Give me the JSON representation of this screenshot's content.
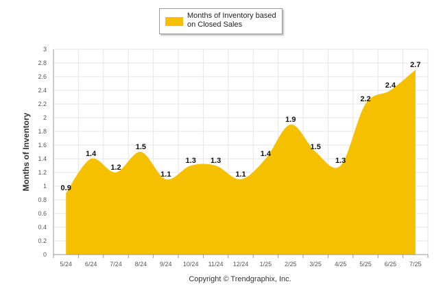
{
  "legend": {
    "label": "Months of Inventory based on Closed Sales"
  },
  "footer": {
    "text": "Copyright © Trendgraphix, Inc."
  },
  "colors": {
    "area": "#f5c000",
    "grid": "#e6e6e6",
    "axis": "#999999"
  },
  "chart_data": {
    "type": "area",
    "title": "",
    "xlabel": "",
    "ylabel": "Months of Inventory",
    "categories": [
      "5/24",
      "6/24",
      "7/24",
      "8/24",
      "9/24",
      "10/24",
      "11/24",
      "12/24",
      "1/25",
      "2/25",
      "3/25",
      "4/25",
      "5/25",
      "6/25",
      "7/25"
    ],
    "series": [
      {
        "name": "Months of Inventory based on Closed Sales",
        "values": [
          0.9,
          1.4,
          1.2,
          1.5,
          1.1,
          1.3,
          1.3,
          1.1,
          1.4,
          1.9,
          1.5,
          1.3,
          2.2,
          2.4,
          2.7
        ]
      }
    ],
    "data_labels": [
      "0.9",
      "1.4",
      "1.2",
      "1.5",
      "1.1",
      "1.3",
      "1.3",
      "1.1",
      "1.4",
      "1.9",
      "1.5",
      "1.3",
      "2.2",
      "2.4",
      "2.7"
    ],
    "ylim": [
      0,
      3
    ],
    "yticks": [
      "0",
      "0.2",
      "0.4",
      "0.6",
      "0.8",
      "1",
      "1.2",
      "1.4",
      "1.6",
      "1.8",
      "2",
      "2.2",
      "2.4",
      "2.6",
      "2.8",
      "3"
    ],
    "grid": true,
    "legend_position": "top-center"
  }
}
